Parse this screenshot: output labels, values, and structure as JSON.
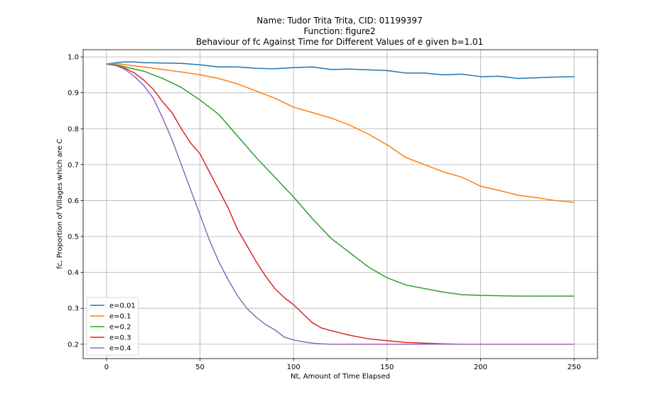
{
  "chart_data": {
    "type": "line",
    "title_lines": [
      "Name: Tudor Trita Trita, CID: 01199397",
      "Function: figure2",
      "Behaviour of fc Against Time for Different Values of e given b=1.01"
    ],
    "xlabel": "Nt, Amount of Time Elapsed",
    "ylabel": "fc, Proportion of Villages which are C",
    "xlim": [
      -12.5,
      262.5
    ],
    "ylim": [
      0.16,
      1.02
    ],
    "xticks": [
      0,
      50,
      100,
      150,
      200,
      250
    ],
    "yticks": [
      0.2,
      0.3,
      0.4,
      0.5,
      0.6,
      0.7,
      0.8,
      0.9,
      1.0
    ],
    "xtick_labels": [
      "0",
      "50",
      "100",
      "150",
      "200",
      "250"
    ],
    "ytick_labels": [
      "0.2",
      "0.3",
      "0.4",
      "0.5",
      "0.6",
      "0.7",
      "0.8",
      "0.9",
      "1.0"
    ],
    "grid": true,
    "legend_position": "lower-left",
    "series": [
      {
        "name": "e=0.01",
        "color": "#1f77b4",
        "x": [
          0,
          5,
          10,
          15,
          20,
          30,
          40,
          50,
          60,
          70,
          80,
          90,
          100,
          110,
          120,
          130,
          140,
          150,
          160,
          170,
          180,
          190,
          200,
          210,
          220,
          230,
          240,
          250
        ],
        "y": [
          0.98,
          0.984,
          0.986,
          0.986,
          0.984,
          0.983,
          0.982,
          0.978,
          0.972,
          0.972,
          0.968,
          0.967,
          0.97,
          0.972,
          0.965,
          0.966,
          0.964,
          0.962,
          0.955,
          0.955,
          0.95,
          0.952,
          0.945,
          0.946,
          0.94,
          0.942,
          0.944,
          0.945
        ]
      },
      {
        "name": "e=0.1",
        "color": "#ff7f0e",
        "x": [
          0,
          5,
          10,
          20,
          30,
          40,
          50,
          60,
          70,
          80,
          90,
          100,
          110,
          120,
          130,
          140,
          150,
          160,
          170,
          180,
          190,
          200,
          210,
          220,
          230,
          240,
          250
        ],
        "y": [
          0.98,
          0.982,
          0.978,
          0.972,
          0.965,
          0.958,
          0.95,
          0.94,
          0.925,
          0.905,
          0.885,
          0.86,
          0.845,
          0.83,
          0.81,
          0.785,
          0.755,
          0.72,
          0.7,
          0.68,
          0.665,
          0.64,
          0.628,
          0.615,
          0.608,
          0.6,
          0.595
        ]
      },
      {
        "name": "e=0.2",
        "color": "#2ca02c",
        "x": [
          0,
          5,
          10,
          20,
          30,
          40,
          50,
          60,
          70,
          80,
          90,
          100,
          110,
          120,
          130,
          140,
          150,
          160,
          170,
          180,
          190,
          200,
          210,
          220,
          230,
          240,
          250
        ],
        "y": [
          0.98,
          0.978,
          0.972,
          0.96,
          0.94,
          0.915,
          0.88,
          0.84,
          0.78,
          0.72,
          0.665,
          0.61,
          0.55,
          0.495,
          0.455,
          0.415,
          0.385,
          0.365,
          0.355,
          0.345,
          0.338,
          0.336,
          0.335,
          0.334,
          0.334,
          0.334,
          0.334
        ]
      },
      {
        "name": "e=0.3",
        "color": "#d62728",
        "x": [
          0,
          5,
          10,
          15,
          20,
          25,
          30,
          35,
          40,
          45,
          50,
          55,
          60,
          65,
          70,
          75,
          80,
          85,
          90,
          95,
          100,
          105,
          110,
          115,
          120,
          130,
          140,
          150,
          160,
          170,
          180,
          190,
          200,
          210,
          220,
          230,
          240,
          250
        ],
        "y": [
          0.98,
          0.976,
          0.968,
          0.955,
          0.935,
          0.91,
          0.875,
          0.845,
          0.8,
          0.76,
          0.73,
          0.68,
          0.63,
          0.58,
          0.52,
          0.475,
          0.43,
          0.39,
          0.355,
          0.33,
          0.31,
          0.285,
          0.26,
          0.245,
          0.238,
          0.225,
          0.215,
          0.21,
          0.205,
          0.203,
          0.201,
          0.2,
          0.2,
          0.2,
          0.2,
          0.2,
          0.2,
          0.2
        ]
      },
      {
        "name": "e=0.4",
        "color": "#9467bd",
        "x": [
          0,
          5,
          10,
          15,
          20,
          25,
          30,
          35,
          40,
          45,
          50,
          55,
          60,
          65,
          70,
          75,
          80,
          85,
          90,
          95,
          100,
          105,
          110,
          115,
          120,
          130,
          140,
          150,
          160,
          170,
          180,
          190,
          200,
          210,
          220,
          230,
          240,
          250
        ],
        "y": [
          0.98,
          0.976,
          0.965,
          0.945,
          0.92,
          0.885,
          0.83,
          0.77,
          0.7,
          0.63,
          0.56,
          0.49,
          0.43,
          0.38,
          0.335,
          0.3,
          0.275,
          0.255,
          0.24,
          0.22,
          0.212,
          0.207,
          0.203,
          0.201,
          0.2,
          0.2,
          0.2,
          0.2,
          0.2,
          0.2,
          0.2,
          0.2,
          0.2,
          0.2,
          0.2,
          0.2,
          0.2,
          0.2
        ]
      }
    ]
  }
}
